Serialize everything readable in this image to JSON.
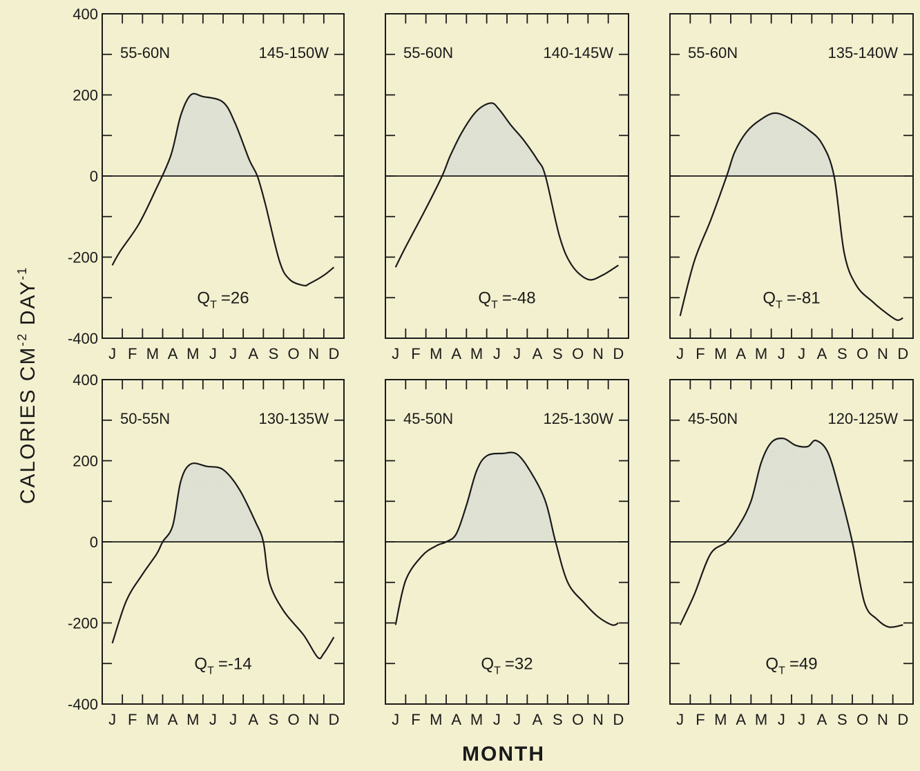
{
  "figure": {
    "ylabel_main": "CALORIES CM",
    "ylabel_sup1": "-2",
    "ylabel_day": " DAY",
    "ylabel_sup2": "-1",
    "xlabel": "MONTH",
    "colors": {
      "background": "#f3f0cf",
      "line": "#1a1a1a",
      "fill": "#e2e5d6"
    }
  },
  "chart_data": [
    {
      "type": "area",
      "lat": "55-60N",
      "lon": "145-150W",
      "qt_label": "Q",
      "qt_sub": "T",
      "qt_value": "=26",
      "ylim": [
        -400,
        400
      ],
      "yticks": [
        "400",
        "200",
        "0",
        "-200",
        "-400"
      ],
      "categories": [
        "J",
        "F",
        "M",
        "A",
        "M",
        "J",
        "J",
        "A",
        "S",
        "O",
        "N",
        "D"
      ],
      "x": [
        0.5,
        0.9,
        1.8,
        2.6,
        3.4,
        3.9,
        4.4,
        5.0,
        6.0,
        6.6,
        7.3,
        7.7,
        8.1,
        8.8,
        9.3,
        10.0,
        10.3,
        11.0,
        11.5
      ],
      "y": [
        -220,
        -185,
        -120,
        -40,
        50,
        150,
        200,
        196,
        182,
        130,
        40,
        0,
        -70,
        -210,
        -255,
        -270,
        -265,
        -245,
        -225
      ]
    },
    {
      "type": "area",
      "lat": "55-60N",
      "lon": "140-145W",
      "qt_label": "Q",
      "qt_sub": "T",
      "qt_value": "=-48",
      "ylim": [
        -400,
        400
      ],
      "yticks": [],
      "categories": [
        "J",
        "F",
        "M",
        "A",
        "M",
        "J",
        "J",
        "A",
        "S",
        "O",
        "N",
        "D"
      ],
      "x": [
        0.5,
        1.0,
        2.0,
        2.8,
        3.2,
        3.8,
        4.5,
        5.2,
        5.6,
        6.2,
        6.8,
        7.5,
        7.9,
        8.6,
        9.2,
        10.0,
        10.7,
        11.5
      ],
      "y": [
        -225,
        -175,
        -80,
        0,
        50,
        110,
        160,
        180,
        165,
        125,
        90,
        40,
        0,
        -150,
        -220,
        -255,
        -245,
        -220
      ]
    },
    {
      "type": "area",
      "lat": "55-60N",
      "lon": "135-140W",
      "qt_label": "Q",
      "qt_sub": "T",
      "qt_value": "=-81",
      "ylim": [
        -400,
        400
      ],
      "yticks": [],
      "categories": [
        "J",
        "F",
        "M",
        "A",
        "M",
        "J",
        "J",
        "A",
        "S",
        "O",
        "N",
        "D"
      ],
      "x": [
        0.5,
        1.2,
        2.0,
        2.8,
        3.2,
        3.8,
        4.5,
        5.2,
        6.0,
        6.8,
        7.5,
        8.1,
        8.6,
        9.2,
        10.0,
        10.6,
        11.2,
        11.5
      ],
      "y": [
        -345,
        -210,
        -110,
        0,
        60,
        110,
        140,
        155,
        140,
        115,
        80,
        0,
        -190,
        -270,
        -310,
        -335,
        -355,
        -350
      ]
    },
    {
      "type": "area",
      "lat": "50-55N",
      "lon": "130-135W",
      "qt_label": "Q",
      "qt_sub": "T",
      "qt_value": "=-14",
      "ylim": [
        -400,
        400
      ],
      "yticks": [
        "400",
        "200",
        "0",
        "-200",
        "-400"
      ],
      "categories": [
        "J",
        "F",
        "M",
        "A",
        "M",
        "J",
        "J",
        "A",
        "S",
        "O",
        "N",
        "D"
      ],
      "x": [
        0.5,
        1.2,
        2.0,
        2.7,
        3.0,
        3.5,
        3.9,
        4.4,
        5.2,
        6.0,
        6.8,
        7.6,
        8.0,
        8.3,
        9.0,
        10.0,
        10.7,
        11.0,
        11.5
      ],
      "y": [
        -250,
        -145,
        -80,
        -30,
        0,
        40,
        150,
        192,
        186,
        178,
        130,
        50,
        0,
        -100,
        -170,
        -230,
        -285,
        -275,
        -235
      ]
    },
    {
      "type": "area",
      "lat": "45-50N",
      "lon": "125-130W",
      "qt_label": "Q",
      "qt_sub": "T",
      "qt_value": "=32",
      "ylim": [
        -400,
        400
      ],
      "yticks": [],
      "categories": [
        "J",
        "F",
        "M",
        "A",
        "M",
        "J",
        "J",
        "A",
        "S",
        "O",
        "N",
        "D"
      ],
      "x": [
        0.5,
        1.0,
        1.8,
        2.5,
        3.0,
        3.5,
        4.0,
        4.5,
        5.0,
        5.8,
        6.5,
        7.2,
        7.9,
        8.4,
        9.0,
        9.8,
        10.5,
        11.2,
        11.5
      ],
      "y": [
        -205,
        -95,
        -35,
        -10,
        0,
        20,
        90,
        175,
        212,
        218,
        216,
        170,
        100,
        0,
        -100,
        -150,
        -185,
        -205,
        -200
      ]
    },
    {
      "type": "area",
      "lat": "45-50N",
      "lon": "120-125W",
      "qt_label": "Q",
      "qt_sub": "T",
      "qt_value": "=49",
      "ylim": [
        -400,
        400
      ],
      "yticks": [],
      "categories": [
        "J",
        "F",
        "M",
        "A",
        "M",
        "J",
        "J",
        "A",
        "S",
        "O",
        "N",
        "D"
      ],
      "x": [
        0.5,
        1.2,
        2.0,
        2.8,
        3.4,
        4.0,
        4.5,
        5.0,
        5.6,
        6.2,
        6.8,
        7.2,
        7.8,
        8.4,
        9.0,
        9.6,
        10.2,
        10.8,
        11.5
      ],
      "y": [
        -205,
        -130,
        -30,
        0,
        40,
        100,
        195,
        245,
        255,
        238,
        235,
        250,
        220,
        120,
        0,
        -150,
        -190,
        -210,
        -205
      ]
    }
  ]
}
